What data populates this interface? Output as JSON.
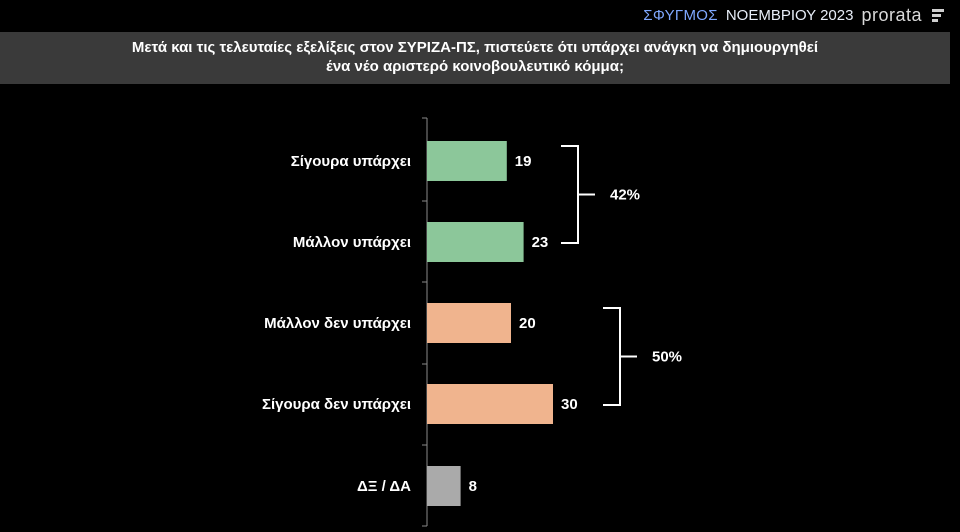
{
  "header": {
    "brand_prefix": "ΣΦΥΓΜΟΣ",
    "brand_suffix": "ΝΟΕΜΒΡΙΟΥ 2023",
    "logo_text": "prorata"
  },
  "colors": {
    "positive": "#8cc79a",
    "negative": "#f0b48e",
    "neutral": "#aaaaaa",
    "background": "#000000",
    "title_band": "#3a3a3a"
  },
  "chart_data": {
    "type": "bar",
    "orientation": "horizontal",
    "title_line1": "Μετά και τις τελευταίες εξελίξεις στον ΣΥΡΙΖΑ-ΠΣ, πιστεύετε ότι υπάρχει ανάγκη να δημιουργηθεί",
    "title_line2": "ένα νέο αριστερό κοινοβουλευτικό κόμμα;",
    "categories": [
      "Σίγουρα υπάρχει",
      "Μάλλον υπάρχει",
      "Μάλλον δεν υπάρχει",
      "Σίγουρα δεν υπάρχει",
      "ΔΞ / ΔΑ"
    ],
    "values": [
      19,
      23,
      20,
      30,
      8
    ],
    "value_labels": [
      "19",
      "23",
      "20",
      "30",
      "8"
    ],
    "groups": [
      {
        "label": "42%",
        "from": 0,
        "to": 1
      },
      {
        "label": "50%",
        "from": 2,
        "to": 3
      }
    ],
    "xlim": [
      0,
      30
    ]
  }
}
